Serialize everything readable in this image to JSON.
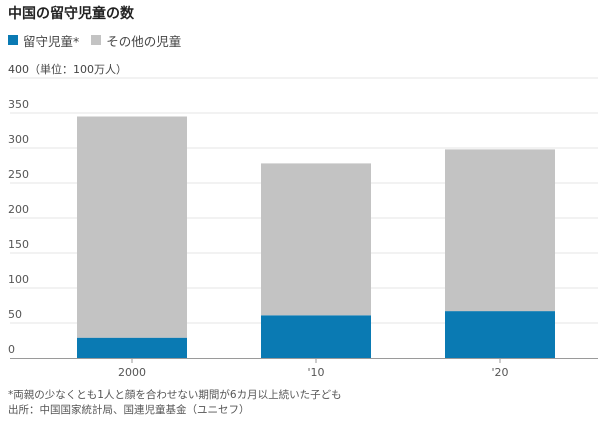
{
  "title": "中国の留守児童の数",
  "legend": {
    "series1": "留守児童*",
    "series2": "その他の児童"
  },
  "unit_label": "400（単位：100万人）",
  "footnote": {
    "line1": "*両親の少なくとも1人と顔を合わせない期間が6カ月以上続いた子ども",
    "line2": "出所：中国国家統計局、国連児童基金（ユニセフ）"
  },
  "colors": {
    "series1": "#0a7ab3",
    "series2": "#c3c3c3",
    "grid": "#e4e4e4",
    "axis": "#9a9a9a"
  },
  "chart_data": {
    "type": "bar",
    "stacked": true,
    "title": "中国の留守児童の数",
    "xlabel": "",
    "ylabel": "（単位：100万人）",
    "ylim": [
      0,
      400
    ],
    "yticks": [
      0,
      50,
      100,
      150,
      200,
      250,
      300,
      350,
      400
    ],
    "categories": [
      "2000",
      "'10",
      "'20"
    ],
    "series": [
      {
        "name": "留守児童*",
        "values": [
          29,
          61,
          67
        ]
      },
      {
        "name": "その他の児童",
        "values": [
          316,
          217,
          231
        ]
      }
    ],
    "grid": true,
    "legend_position": "top-left"
  }
}
